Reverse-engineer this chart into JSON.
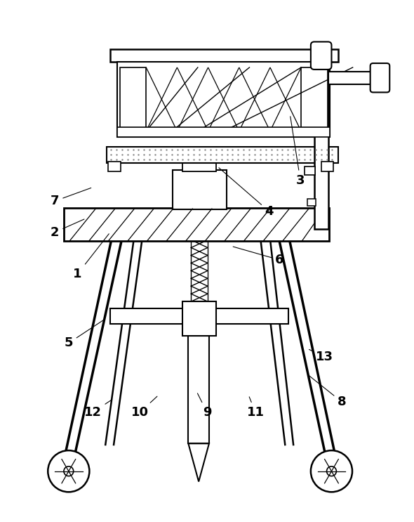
{
  "bg_color": "#ffffff",
  "line_color": "#000000",
  "label_color": "#000000",
  "figsize": [
    5.9,
    7.43
  ],
  "dpi": 100,
  "labels_data": [
    [
      "1",
      108,
      390,
      155,
      330
    ],
    [
      "2",
      75,
      330,
      120,
      310
    ],
    [
      "3",
      430,
      255,
      415,
      160
    ],
    [
      "4",
      385,
      300,
      310,
      235
    ],
    [
      "5",
      95,
      490,
      148,
      455
    ],
    [
      "6",
      400,
      370,
      330,
      350
    ],
    [
      "7",
      75,
      285,
      130,
      265
    ],
    [
      "8",
      490,
      575,
      440,
      535
    ],
    [
      "9",
      295,
      590,
      280,
      560
    ],
    [
      "10",
      198,
      590,
      225,
      565
    ],
    [
      "11",
      365,
      590,
      355,
      565
    ],
    [
      "12",
      130,
      590,
      160,
      570
    ],
    [
      "13",
      465,
      510,
      440,
      498
    ]
  ]
}
